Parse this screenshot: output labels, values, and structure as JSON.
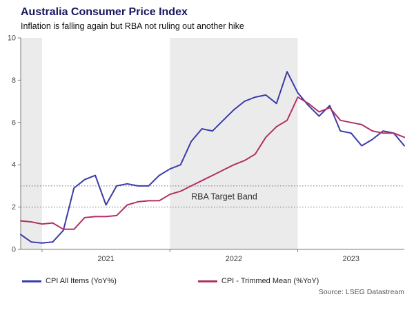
{
  "header": {
    "title": "Australia Consumer Price Index",
    "subtitle": "Inflation is falling again but RBA not ruling out another hike"
  },
  "source": "Source: LSEG Datastream",
  "colors": {
    "cpi_all": "#3a3aab",
    "trimmed_mean": "#b03066",
    "band_fill": "#ebebeb",
    "axis": "#7a7a7a",
    "tick_label": "#444444",
    "target_line": "#6e6e6e",
    "target_label": "#333333",
    "title": "#16165f"
  },
  "chart_data": {
    "type": "line",
    "title": "Australia Consumer Price Index",
    "subtitle": "Inflation is falling again but RBA not ruling out another hike",
    "xlabel": "",
    "ylabel": "",
    "ylim": [
      0,
      10
    ],
    "yticks": [
      0,
      2,
      4,
      6,
      8,
      10
    ],
    "grid": false,
    "legend_position": "bottom",
    "x": [
      "2020-11",
      "2020-12",
      "2021-01",
      "2021-02",
      "2021-03",
      "2021-04",
      "2021-05",
      "2021-06",
      "2021-07",
      "2021-08",
      "2021-09",
      "2021-10",
      "2021-11",
      "2021-12",
      "2022-01",
      "2022-02",
      "2022-03",
      "2022-04",
      "2022-05",
      "2022-06",
      "2022-07",
      "2022-08",
      "2022-09",
      "2022-10",
      "2022-11",
      "2022-12",
      "2023-01",
      "2023-02",
      "2023-03",
      "2023-04",
      "2023-05",
      "2023-06",
      "2023-07",
      "2023-08",
      "2023-09",
      "2023-10",
      "2023-11"
    ],
    "series": [
      {
        "name": "CPI All Items (YoY%)",
        "color_key": "cpi_all",
        "values": [
          0.7,
          0.35,
          0.3,
          0.35,
          0.9,
          2.9,
          3.3,
          3.5,
          2.1,
          3.0,
          3.1,
          3.0,
          3.0,
          3.5,
          3.8,
          4.0,
          5.1,
          5.7,
          5.6,
          6.1,
          6.6,
          7.0,
          7.2,
          7.3,
          6.9,
          8.4,
          7.4,
          6.8,
          6.3,
          6.8,
          5.6,
          5.5,
          4.9,
          5.2,
          5.6,
          5.5,
          4.9
        ]
      },
      {
        "name": "CPI - Trimmed Mean (%YoY)",
        "color_key": "trimmed_mean",
        "values": [
          1.35,
          1.3,
          1.2,
          1.25,
          0.95,
          0.95,
          1.5,
          1.55,
          1.55,
          1.6,
          2.1,
          2.25,
          2.3,
          2.3,
          2.6,
          2.75,
          3.0,
          3.25,
          3.5,
          3.75,
          4.0,
          4.2,
          4.5,
          5.3,
          5.8,
          6.1,
          7.2,
          6.9,
          6.5,
          6.7,
          6.1,
          6.0,
          5.9,
          5.6,
          5.5,
          5.5,
          5.3
        ]
      }
    ],
    "year_labels": [
      {
        "label": "2021",
        "center_index": 8
      },
      {
        "label": "2022",
        "center_index": 20
      },
      {
        "label": "2023",
        "center_index": 31
      }
    ],
    "shaded_bands": [
      {
        "from_index": 0,
        "to_index": 2
      },
      {
        "from_index": 14,
        "to_index": 26
      }
    ],
    "x_tick_indices": [
      2,
      14,
      26
    ],
    "target_band": {
      "low": 2,
      "high": 3,
      "label": "RBA Target Band",
      "label_x_index": 16,
      "label_y_value": 2.5
    }
  },
  "legend": {
    "items": [
      {
        "label": "CPI All Items (YoY%)"
      },
      {
        "label": "CPI - Trimmed Mean (%YoY)"
      }
    ]
  }
}
